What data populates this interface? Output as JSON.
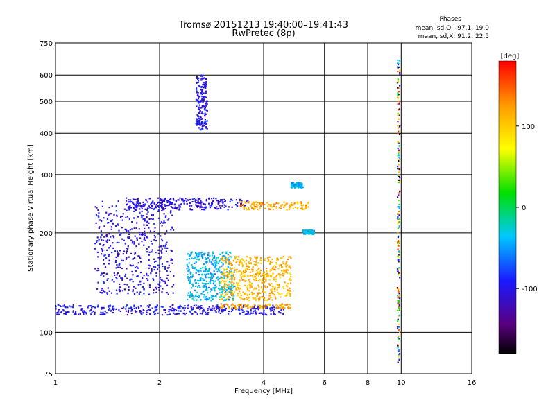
{
  "chart_data": {
    "type": "scatter",
    "title": "Tromsø 20151213 19:40:00–19:41:43",
    "subtitle": "RwPretec (8p)",
    "xlabel": "Frequency [MHz]",
    "ylabel": "Stationary phase Virtual Height [km]",
    "x_scale": "log",
    "y_scale": "log",
    "xlim": [
      1,
      16
    ],
    "ylim": [
      75,
      750
    ],
    "x_ticks": [
      1,
      2,
      4,
      6,
      8,
      10,
      16
    ],
    "x_tick_labels": [
      "1",
      "2",
      "4",
      "6",
      "8",
      "10",
      "16"
    ],
    "y_ticks": [
      75,
      100,
      200,
      300,
      400,
      500,
      600,
      750
    ],
    "y_tick_labels": [
      "75",
      "100",
      "200",
      "300",
      "400",
      "500",
      "600",
      "750"
    ],
    "grid": true,
    "stats": {
      "heading": "Phases",
      "line_o": "mean, sd,O:  -97.1, 19.0",
      "line_x": "mean, sd,X:  91.2, 22.5"
    },
    "colorbar": {
      "label": "[deg]",
      "range": [
        -180,
        180
      ],
      "ticks": [
        100,
        0,
        -100
      ],
      "tick_labels": [
        "100",
        "0",
        "-100"
      ],
      "colormap": "rainbow (black–purple–blue–cyan–green–yellow–red)"
    },
    "traces": [
      {
        "trace": "low-level layer",
        "frequency_range": [
          1.0,
          4.6
        ],
        "height_range": [
          113,
          121
        ],
        "phase_deg": -100
      },
      {
        "trace": "low-level layer",
        "frequency_range": [
          3.0,
          4.8
        ],
        "height_range": [
          118,
          122
        ],
        "phase_deg": 120
      },
      {
        "trace": "F-layer cloud",
        "frequency_range": [
          1.3,
          2.2
        ],
        "height_range": [
          130,
          250
        ],
        "phase_deg": -105
      },
      {
        "trace": "F-layer cloud",
        "frequency_range": [
          2.4,
          3.3
        ],
        "height_range": [
          125,
          175
        ],
        "phase_deg": -40
      },
      {
        "trace": "F-layer cloud",
        "frequency_range": [
          3.0,
          4.8
        ],
        "height_range": [
          125,
          170
        ],
        "phase_deg": 110
      },
      {
        "trace": "upper F trace",
        "frequency_range": [
          1.6,
          3.6
        ],
        "height_range": [
          235,
          255
        ],
        "phase_deg": -105
      },
      {
        "trace": "upper F trace",
        "frequency_range": [
          3.4,
          5.4
        ],
        "height_range": [
          235,
          248
        ],
        "phase_deg": 120
      },
      {
        "trace": "high trace",
        "frequency_range": [
          4.8,
          5.2
        ],
        "height_range": [
          274,
          284
        ],
        "phase_deg": -40
      },
      {
        "trace": "mid trace",
        "frequency_range": [
          5.2,
          5.6
        ],
        "height_range": [
          198,
          204
        ],
        "phase_deg": -40
      },
      {
        "trace": "hook",
        "frequency_range": [
          2.55,
          2.75
        ],
        "height_range": [
          410,
          600
        ],
        "phase_deg": -100
      },
      {
        "trace": "vertical stripe",
        "frequency_range": [
          9.75,
          9.9
        ],
        "height_range": [
          80,
          670
        ],
        "phase_deg": "mixed"
      }
    ]
  }
}
